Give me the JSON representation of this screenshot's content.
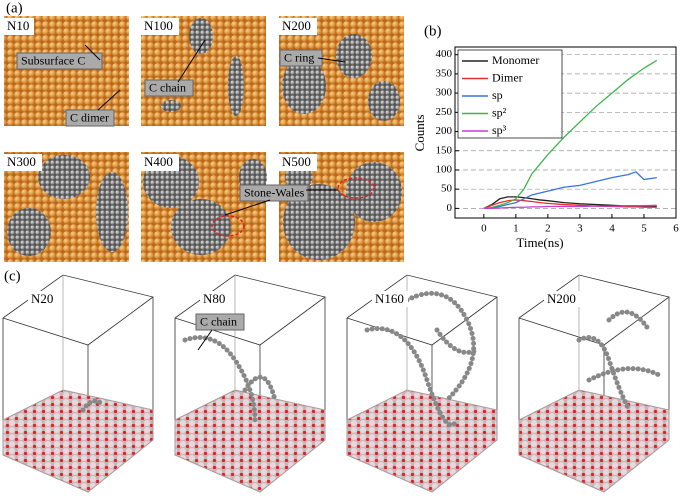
{
  "panel_a": {
    "label": "(a)",
    "tiles": [
      "N10",
      "N100",
      "N200",
      "N300",
      "N400",
      "N500"
    ],
    "callouts": [
      "Subsurface C",
      "C dimer",
      "C chain",
      "C ring",
      "Stone-Wales"
    ]
  },
  "chart_data": {
    "type": "line",
    "label": "(b)",
    "xlabel": "Time(ns)",
    "ylabel": "Counts",
    "x": [
      0,
      0.25,
      0.5,
      0.75,
      1,
      1.25,
      1.5,
      1.75,
      2,
      2.5,
      3,
      3.5,
      4,
      4.5,
      4.75,
      5,
      5.4
    ],
    "series": [
      {
        "name": "Monomer",
        "color": "#222222",
        "values": [
          0,
          10,
          25,
          30,
          30,
          28,
          25,
          22,
          20,
          15,
          12,
          10,
          8,
          6,
          6,
          5,
          5
        ]
      },
      {
        "name": "Dimer",
        "color": "#e8302a",
        "values": [
          0,
          8,
          15,
          20,
          22,
          20,
          18,
          15,
          13,
          10,
          8,
          6,
          5,
          4,
          4,
          3,
          3
        ]
      },
      {
        "name": "sp",
        "color": "#3a74d8",
        "values": [
          0,
          2,
          5,
          10,
          15,
          25,
          35,
          40,
          45,
          55,
          60,
          70,
          80,
          88,
          95,
          75,
          80
        ]
      },
      {
        "name": "sp²",
        "color": "#3cb54a",
        "values": [
          0,
          3,
          8,
          15,
          25,
          50,
          90,
          115,
          140,
          185,
          225,
          265,
          300,
          335,
          350,
          365,
          385
        ]
      },
      {
        "name": "sp³",
        "color": "#c040d0",
        "values": [
          0,
          0,
          1,
          2,
          3,
          3,
          4,
          4,
          5,
          5,
          5,
          6,
          6,
          7,
          7,
          7,
          8
        ]
      }
    ],
    "xlim": [
      -0.9,
      6
    ],
    "ylim": [
      -25,
      420
    ],
    "xticks": [
      0,
      1,
      2,
      3,
      4,
      5,
      6
    ],
    "yticks": [
      0,
      50,
      100,
      150,
      200,
      250,
      300,
      350,
      400
    ],
    "grid": true
  },
  "panel_c": {
    "label": "(c)",
    "boxes": [
      "N20",
      "N80",
      "N160",
      "N200"
    ],
    "callout": "C chain"
  }
}
